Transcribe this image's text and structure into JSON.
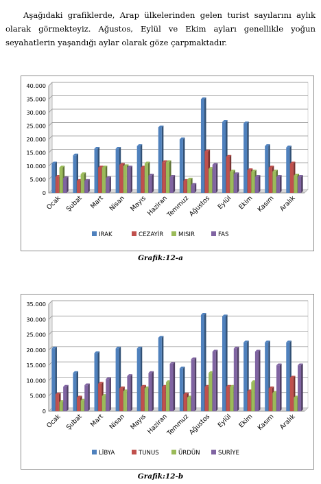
{
  "paragraph": "Aşağıdaki grafiklerde, Arap ülkelerinden gelen turist sayılarını aylık olarak görmekteyiz. Ağustos, Eylül ve Ekim ayları genellikle yoğun seyahatlerin yaşandığı aylar olarak göze çarpmaktadır.",
  "colors": {
    "series1": "#4f81bd",
    "series2": "#c0504d",
    "series3": "#9bbb59",
    "series4": "#8064a2"
  },
  "chart_data": [
    {
      "type": "bar",
      "caption": "Grafik:12-a",
      "categories": [
        "Ocak",
        "Şubat",
        "Mart",
        "Nisan",
        "Mayıs",
        "Haziran",
        "Temmuz",
        "Ağustos",
        "Eylül",
        "Ekim",
        "Kasım",
        "Aralık"
      ],
      "ylim": [
        0,
        40000
      ],
      "yticks": [
        "0",
        "5.000",
        "10.000",
        "15.000",
        "20.000",
        "25.000",
        "30.000",
        "35.000",
        "40.000"
      ],
      "grid": true,
      "legend": "bottom",
      "series": [
        {
          "name": "IRAK",
          "values": [
            11000,
            14000,
            16500,
            16500,
            17500,
            24500,
            20000,
            35000,
            26500,
            26000,
            17500,
            17000
          ]
        },
        {
          "name": "CEZAYİR",
          "values": [
            6000,
            4500,
            9500,
            10500,
            9500,
            11500,
            4500,
            15500,
            13500,
            8500,
            9500,
            11000
          ]
        },
        {
          "name": "MISIR",
          "values": [
            9500,
            7000,
            9500,
            10000,
            11000,
            11500,
            5000,
            9000,
            8000,
            8000,
            8000,
            6500
          ]
        },
        {
          "name": "FAS",
          "values": [
            5500,
            4500,
            5500,
            9500,
            6500,
            6000,
            3000,
            10500,
            7000,
            6000,
            6000,
            6000
          ]
        }
      ]
    },
    {
      "type": "bar",
      "caption": "Grafik:12-b",
      "categories": [
        "Ocak",
        "Şubat",
        "Mart",
        "Nisan",
        "Mayıs",
        "Haziran",
        "Temmuz",
        "Ağustos",
        "Eylül",
        "Ekim",
        "Kasım",
        "Aralık"
      ],
      "ylim": [
        0,
        35000
      ],
      "yticks": [
        "0",
        "5.000",
        "10.000",
        "15.000",
        "20.000",
        "25.000",
        "30.000",
        "35.000"
      ],
      "grid": true,
      "legend": "bottom",
      "series": [
        {
          "name": "LİBYA",
          "values": [
            20500,
            12500,
            19000,
            20500,
            20500,
            24000,
            14000,
            31500,
            31000,
            22500,
            22500,
            22500
          ]
        },
        {
          "name": "TUNUS",
          "values": [
            5500,
            4500,
            9000,
            7500,
            8000,
            8000,
            5500,
            8000,
            8000,
            6500,
            7500,
            11000
          ]
        },
        {
          "name": "ÜRDÜN",
          "values": [
            3000,
            3500,
            5000,
            6500,
            7500,
            9500,
            4500,
            12500,
            8000,
            9500,
            6000,
            4500
          ]
        },
        {
          "name": "SURİYE",
          "values": [
            8000,
            8500,
            10500,
            11500,
            12500,
            15500,
            17000,
            19500,
            20500,
            19500,
            15000,
            15000
          ]
        }
      ]
    }
  ]
}
